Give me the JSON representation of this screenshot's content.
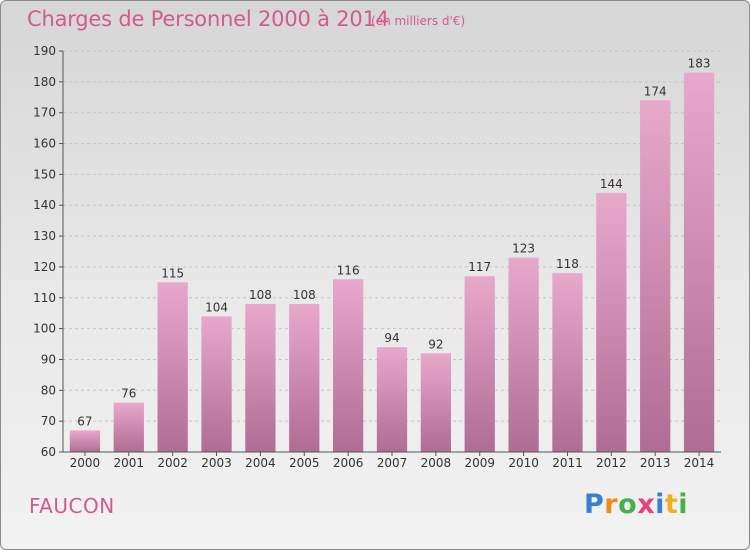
{
  "header": {
    "title": "Charges de Personnel 2000 à 2014",
    "subtitle": "(en milliers d'€)"
  },
  "footer": {
    "commune": "FAUCON",
    "logo_text": "Proxiti",
    "logo_letters": [
      {
        "ch": "P",
        "color": "#3a7fd0"
      },
      {
        "ch": "r",
        "color": "#f08a1c"
      },
      {
        "ch": "o",
        "color": "#46b04a"
      },
      {
        "ch": "x",
        "color": "#e8407a"
      },
      {
        "ch": "i",
        "color": "#3a7fd0"
      },
      {
        "ch": "t",
        "color": "#f0b21c"
      },
      {
        "ch": "i",
        "color": "#46b04a"
      }
    ]
  },
  "colors": {
    "accent": "#d35a8e",
    "bar_top": "#e8a8cc",
    "bar_bottom": "#b06d93"
  },
  "chart_data": {
    "type": "bar",
    "title": "Charges de Personnel 2000 à 2014",
    "subtitle": "(en milliers d'€)",
    "categories": [
      "2000",
      "2001",
      "2002",
      "2003",
      "2004",
      "2005",
      "2006",
      "2007",
      "2008",
      "2009",
      "2010",
      "2011",
      "2012",
      "2013",
      "2014"
    ],
    "values": [
      67,
      76,
      115,
      104,
      108,
      108,
      116,
      94,
      92,
      117,
      123,
      118,
      144,
      174,
      183
    ],
    "ylim": [
      60,
      190
    ],
    "yticks": [
      60,
      70,
      80,
      90,
      100,
      110,
      120,
      130,
      140,
      150,
      160,
      170,
      180,
      190
    ],
    "grid": true,
    "data_labels": true
  }
}
